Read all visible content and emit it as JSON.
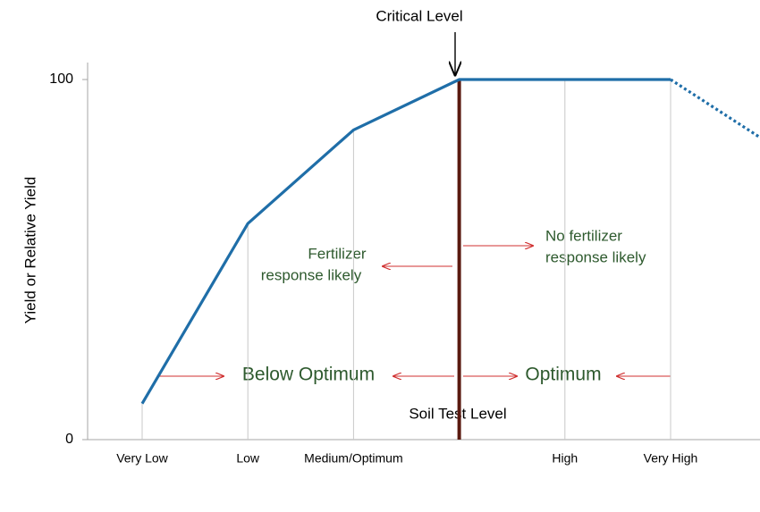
{
  "chart_data": {
    "type": "line",
    "x_label": "Soil Test Level",
    "y_label": "Yield or Relative Yield",
    "categories": [
      "Very Low",
      "Low",
      "Medium/Optimum",
      null,
      "High",
      "Very High",
      null
    ],
    "series": [
      {
        "color": "#1f6ea8",
        "style": "solid",
        "values": [
          10,
          60,
          86,
          100,
          100,
          100,
          null
        ]
      },
      {
        "color": "#1f6ea8",
        "style": "dotted",
        "values": [
          null,
          null,
          null,
          null,
          null,
          100,
          81
        ]
      }
    ],
    "ylim": [
      0,
      100
    ],
    "yticks": [
      0,
      100
    ],
    "critical_index": 3,
    "annotations": {
      "critical_level": "Critical Level",
      "fertilizer_response": [
        "Fertilizer",
        "response likely"
      ],
      "no_fertilizer_response": [
        "No fertilizer",
        "response likely"
      ],
      "below_optimum": "Below Optimum",
      "optimum": "Optimum"
    }
  }
}
